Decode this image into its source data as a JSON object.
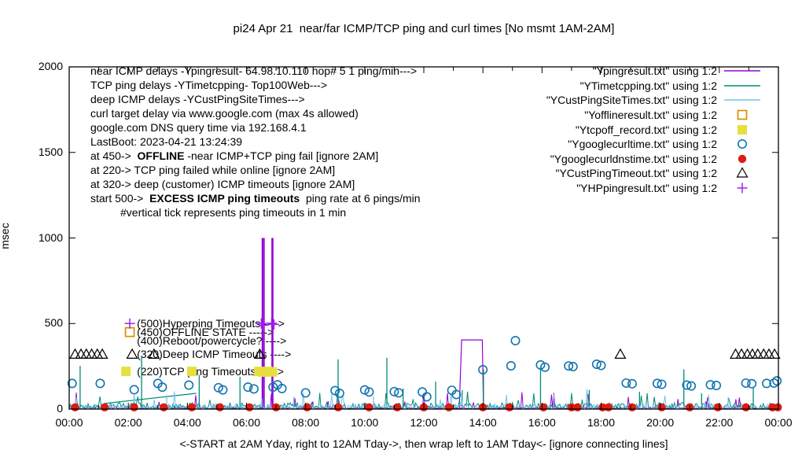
{
  "annotations": {
    "lines": [
      "near ICMP delays -Ypingresult- 64.98.10.110 hop# 5 1 ping/min--->",
      "TCP ping delays -YTimetcpping- Top100Web--->",
      "deep ICMP delays -YCustPingSiteTimes--->",
      "curl target delay via www.google.com (max 4s allowed)",
      "google.com DNS query time via 192.168.4.1",
      "LastBoot: 2023-04-21 13:24:39",
      {
        "pre": "at 450->  ",
        "bold": "OFFLINE",
        "post": " -near ICMP+TCP ping fail [ignore 2AM]"
      },
      "at 220-> TCP ping failed while online [ignore 2AM]",
      "at 320-> deep (customer) ICMP timeouts [ignore 2AM]",
      {
        "pre": "start 500->  ",
        "bold": "EXCESS ICMP ping timeouts",
        "post": "  ping rate at 6 pings/min"
      },
      "#vertical tick represents ping timeouts in 1 min"
    ],
    "mid_labels": [
      {
        "text": "(500)Hyperping Timeouts ---->",
        "x_hour": 2.29,
        "v": 500
      },
      {
        "text": "(450)OFFLINE STATE ----->",
        "x_hour": 2.29,
        "v": 450
      },
      {
        "text": "(400)Reboot/powercycle? ---->",
        "x_hour": 2.29,
        "v": 400
      },
      {
        "text": "(320)Deep ICMP Timeouts ---->",
        "x_hour": 2.29,
        "v": 320
      },
      {
        "text": "(220)TCP ping Timeouts ----->",
        "x_hour": 2.29,
        "v": 220
      }
    ]
  },
  "chart_data": {
    "type": "line",
    "title": "pi24 Apr 21  near/far ICMP/TCP ping and curl times [No msmt 1AM-2AM]",
    "xlabel": "<-START at 2AM Yday, right to 12AM Tday->, then wrap left to 1AM Tday<- [ignore connecting lines]",
    "ylabel": "msec",
    "xlim": [
      0,
      24
    ],
    "ylim": [
      0,
      2000
    ],
    "grid": false,
    "legend_position": "top-right",
    "x_tick_hours": [
      0,
      2,
      4,
      6,
      8,
      10,
      12,
      14,
      16,
      18,
      20,
      22,
      24
    ],
    "x_ticks": [
      "00:00",
      "02:00",
      "04:00",
      "06:00",
      "08:00",
      "10:00",
      "12:00",
      "14:00",
      "16:00",
      "18:00",
      "20:00",
      "22:00",
      "00:00"
    ],
    "y_ticks": [
      0,
      500,
      1000,
      1500,
      2000
    ],
    "series": [
      {
        "file": "Ypingresult.txt",
        "label": "\"Ypingresult.txt\" using 1:2",
        "color": "#9400d3",
        "style": "line",
        "noise": {
          "base": 3,
          "amp": 9
        },
        "spikes": [
          [
            6.53,
            1000
          ],
          [
            6.565,
            1000
          ],
          [
            6.6,
            1000
          ],
          [
            6.86,
            1000
          ],
          [
            6.895,
            1000
          ],
          [
            21.55,
            45
          ]
        ],
        "paths": [
          [
            [
              13.2,
              8
            ],
            [
              13.28,
              404
            ],
            [
              13.98,
              404
            ],
            [
              14.02,
              8
            ]
          ]
        ]
      },
      {
        "file": "YTimetcpping.txt",
        "label": "\"YTimetcpping.txt\" using 1:2",
        "color": "#008b74",
        "style": "line",
        "noise": {
          "base": 4,
          "amp": 34
        },
        "spikes": [
          [
            0.37,
            253
          ],
          [
            2.45,
            313
          ],
          [
            4.4,
            200
          ],
          [
            5.78,
            188
          ],
          [
            9.1,
            290
          ],
          [
            10.75,
            300
          ],
          [
            11.3,
            120
          ],
          [
            12.4,
            160
          ],
          [
            13.3,
            110
          ],
          [
            14.02,
            232
          ],
          [
            15.95,
            247
          ],
          [
            17.6,
            112
          ],
          [
            19.3,
            100
          ],
          [
            20.8,
            232
          ],
          [
            21.4,
            92
          ],
          [
            23.15,
            130
          ]
        ],
        "paths": [
          [
            [
              1.17,
              32
            ],
            [
              4.3,
              92
            ]
          ]
        ]
      },
      {
        "file": "YCustPingSiteTimes.txt",
        "label": "\"YCustPingSiteTimes.txt\" using 1:2",
        "color": "#74c4ec",
        "style": "line",
        "noise": {
          "base": 4,
          "amp": 26
        },
        "spikes": [
          [
            3.3,
            80
          ],
          [
            7.6,
            72
          ],
          [
            10.3,
            75
          ],
          [
            16.4,
            85
          ],
          [
            22.3,
            70
          ]
        ],
        "paths": []
      },
      {
        "file": "Yofflineresult.txt",
        "label": "\"Yofflineresult.txt\" using 1:2",
        "color": "#dd8c00",
        "style": "marker",
        "marker": "open-square",
        "points": [
          [
            2.05,
            450
          ]
        ]
      },
      {
        "file": "Ytcpoff_record.txt",
        "label": "\"Ytcpoff_record.txt\" using 1:2",
        "color": "#e6df3e",
        "style": "marker",
        "marker": "filled-square",
        "points": [
          [
            1.92,
            220
          ],
          [
            4.15,
            220
          ],
          [
            6.42,
            220
          ],
          [
            6.56,
            216
          ],
          [
            6.72,
            220
          ],
          [
            6.88,
            217
          ]
        ]
      },
      {
        "file": "Ygooglecurltime.txt",
        "label": "\"Ygooglecurltime.txt\" using 1:2",
        "color": "#1274b0",
        "style": "marker",
        "marker": "open-circle",
        "points": [
          [
            0.1,
            150
          ],
          [
            1.05,
            150
          ],
          [
            2.2,
            113
          ],
          [
            3.0,
            150
          ],
          [
            3.15,
            128
          ],
          [
            4.05,
            140
          ],
          [
            5.05,
            125
          ],
          [
            5.2,
            112
          ],
          [
            6.05,
            128
          ],
          [
            6.25,
            118
          ],
          [
            6.9,
            128
          ],
          [
            7.05,
            142
          ],
          [
            7.2,
            120
          ],
          [
            8.0,
            95
          ],
          [
            9.0,
            108
          ],
          [
            9.15,
            92
          ],
          [
            10.0,
            112
          ],
          [
            10.15,
            100
          ],
          [
            11.0,
            102
          ],
          [
            11.15,
            95
          ],
          [
            11.95,
            100
          ],
          [
            12.1,
            72
          ],
          [
            12.95,
            110
          ],
          [
            13.1,
            85
          ],
          [
            14.0,
            230
          ],
          [
            14.95,
            253
          ],
          [
            15.1,
            400
          ],
          [
            15.95,
            258
          ],
          [
            16.1,
            245
          ],
          [
            16.9,
            252
          ],
          [
            17.05,
            248
          ],
          [
            17.85,
            262
          ],
          [
            18.0,
            255
          ],
          [
            18.85,
            152
          ],
          [
            19.05,
            148
          ],
          [
            19.9,
            150
          ],
          [
            20.05,
            145
          ],
          [
            20.9,
            140
          ],
          [
            21.05,
            135
          ],
          [
            21.7,
            142
          ],
          [
            21.9,
            138
          ],
          [
            22.9,
            152
          ],
          [
            23.1,
            148
          ],
          [
            23.6,
            150
          ],
          [
            23.85,
            152
          ],
          [
            23.95,
            165
          ]
        ]
      },
      {
        "file": "Ygooglecurldnstime.txt",
        "label": "\"Ygooglecurldnstime.txt\" using 1:2",
        "color": "#dd1c10",
        "style": "marker",
        "marker": "filled-circle",
        "points": [
          [
            0.2,
            10
          ],
          [
            1.2,
            10
          ],
          [
            2.2,
            10
          ],
          [
            3.2,
            10
          ],
          [
            4.15,
            10
          ],
          [
            5.1,
            10
          ],
          [
            6.1,
            10
          ],
          [
            7.0,
            10
          ],
          [
            8.05,
            10
          ],
          [
            9.1,
            10
          ],
          [
            10.15,
            10
          ],
          [
            11.1,
            10
          ],
          [
            12.0,
            10
          ],
          [
            12.85,
            10
          ],
          [
            14.0,
            10
          ],
          [
            14.9,
            10
          ],
          [
            16.05,
            10
          ],
          [
            17.0,
            10
          ],
          [
            17.2,
            10
          ],
          [
            18.05,
            10
          ],
          [
            18.25,
            10
          ],
          [
            19.05,
            10
          ],
          [
            20.05,
            10
          ],
          [
            21.0,
            10
          ],
          [
            21.95,
            10
          ],
          [
            22.9,
            10
          ],
          [
            23.8,
            10
          ],
          [
            23.98,
            10
          ]
        ]
      },
      {
        "file": "YCustPingTimeout.txt",
        "label": "\"YCustPingTimeout.txt\" using 1:2",
        "color": "#000000",
        "style": "marker",
        "marker": "open-triangle",
        "points": [
          [
            0.2,
            320
          ],
          [
            0.4,
            320
          ],
          [
            0.58,
            320
          ],
          [
            0.76,
            320
          ],
          [
            0.95,
            320
          ],
          [
            1.12,
            320
          ],
          [
            2.13,
            320
          ],
          [
            2.87,
            320
          ],
          [
            6.45,
            320
          ],
          [
            18.65,
            320
          ],
          [
            22.55,
            320
          ],
          [
            22.75,
            320
          ],
          [
            22.95,
            320
          ],
          [
            23.12,
            320
          ],
          [
            23.3,
            320
          ],
          [
            23.5,
            320
          ],
          [
            23.68,
            320
          ],
          [
            23.87,
            320
          ]
        ]
      },
      {
        "file": "YHPpingresult.txt",
        "label": "\"YHPpingresult.txt\" using 1:2",
        "color": "#a020f0",
        "style": "marker",
        "marker": "plus",
        "points": [
          [
            2.05,
            500
          ],
          [
            6.5,
            500
          ],
          [
            6.58,
            490
          ],
          [
            6.85,
            502
          ],
          [
            6.93,
            495
          ]
        ]
      }
    ]
  }
}
